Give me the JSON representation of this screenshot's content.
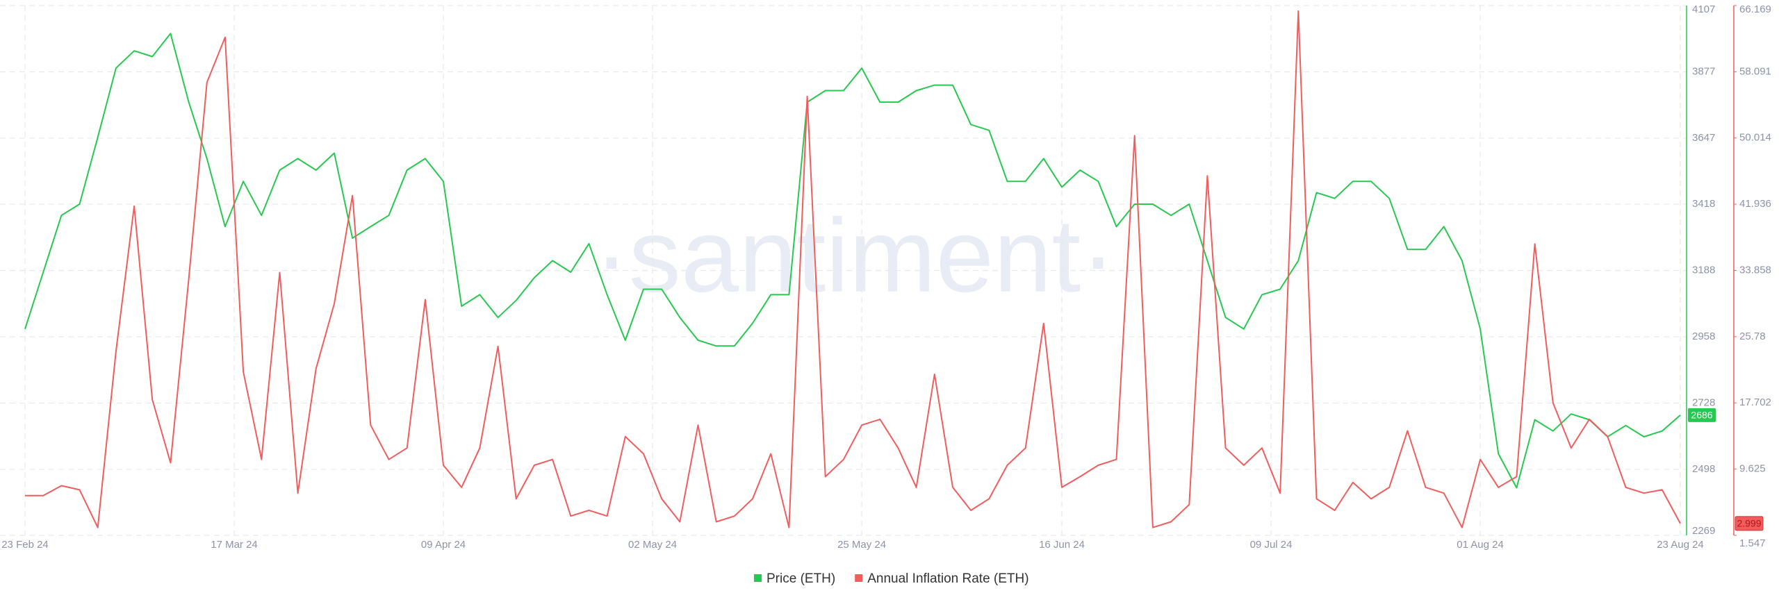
{
  "chart_data": {
    "type": "line",
    "watermark": "·santiment·",
    "x": [
      "23 Feb 24",
      "25 Feb 24",
      "27 Feb 24",
      "29 Feb 24",
      "02 Mar 24",
      "04 Mar 24",
      "06 Mar 24",
      "08 Mar 24",
      "10 Mar 24",
      "12 Mar 24",
      "14 Mar 24",
      "16 Mar 24",
      "18 Mar 24",
      "20 Mar 24",
      "22 Mar 24",
      "24 Mar 24",
      "26 Mar 24",
      "28 Mar 24",
      "30 Mar 24",
      "01 Apr 24",
      "03 Apr 24",
      "05 Apr 24",
      "07 Apr 24",
      "09 Apr 24",
      "11 Apr 24",
      "13 Apr 24",
      "15 Apr 24",
      "17 Apr 24",
      "19 Apr 24",
      "21 Apr 24",
      "23 Apr 24",
      "25 Apr 24",
      "27 Apr 24",
      "29 Apr 24",
      "01 May 24",
      "03 May 24",
      "05 May 24",
      "07 May 24",
      "09 May 24",
      "11 May 24",
      "13 May 24",
      "15 May 24",
      "17 May 24",
      "19 May 24",
      "21 May 24",
      "23 May 24",
      "25 May 24",
      "27 May 24",
      "29 May 24",
      "31 May 24",
      "02 Jun 24",
      "04 Jun 24",
      "06 Jun 24",
      "08 Jun 24",
      "10 Jun 24",
      "12 Jun 24",
      "14 Jun 24",
      "16 Jun 24",
      "18 Jun 24",
      "20 Jun 24",
      "22 Jun 24",
      "24 Jun 24",
      "26 Jun 24",
      "28 Jun 24",
      "30 Jun 24",
      "02 Jul 24",
      "04 Jul 24",
      "06 Jul 24",
      "08 Jul 24",
      "10 Jul 24",
      "12 Jul 24",
      "14 Jul 24",
      "16 Jul 24",
      "18 Jul 24",
      "20 Jul 24",
      "22 Jul 24",
      "24 Jul 24",
      "26 Jul 24",
      "28 Jul 24",
      "30 Jul 24",
      "01 Aug 24",
      "03 Aug 24",
      "05 Aug 24",
      "07 Aug 24",
      "09 Aug 24",
      "11 Aug 24",
      "13 Aug 24",
      "15 Aug 24",
      "17 Aug 24",
      "19 Aug 24",
      "21 Aug 24",
      "23 Aug 24"
    ],
    "xticks": [
      "23 Feb 24",
      "17 Mar 24",
      "09 Apr 24",
      "02 May 24",
      "25 May 24",
      "16 Jun 24",
      "09 Jul 24",
      "01 Aug 24",
      "23 Aug 24"
    ],
    "series": [
      {
        "name": "Price (ETH)",
        "color": "#26c94f",
        "axis": "y",
        "values": [
          2985,
          3182,
          3379,
          3418,
          3650,
          3890,
          3950,
          3930,
          4010,
          3772,
          3576,
          3340,
          3497,
          3379,
          3536,
          3576,
          3536,
          3595,
          3300,
          3340,
          3379,
          3536,
          3576,
          3497,
          3064,
          3104,
          3025,
          3084,
          3163,
          3222,
          3182,
          3281,
          3104,
          2946,
          3123,
          3123,
          3025,
          2946,
          2926,
          2926,
          3005,
          3104,
          3104,
          3772,
          3812,
          3812,
          3890,
          3772,
          3772,
          3812,
          3831,
          3831,
          3694,
          3674,
          3497,
          3497,
          3576,
          3477,
          3536,
          3497,
          3340,
          3418,
          3418,
          3379,
          3418,
          3222,
          3025,
          2985,
          3104,
          3123,
          3222,
          3458,
          3438,
          3497,
          3497,
          3438,
          3261,
          3261,
          3340,
          3222,
          2985,
          2552,
          2434,
          2670,
          2631,
          2690,
          2670,
          2611,
          2650,
          2611,
          2631,
          2686
        ]
      },
      {
        "name": "Annual Inflation Rate (ETH)",
        "color": "#f25c5c",
        "axis": "y2",
        "values": [
          6.4,
          6.4,
          7.6,
          7.1,
          2.5,
          24,
          41.7,
          18.1,
          10.4,
          32.8,
          56.8,
          62.3,
          21.5,
          10.8,
          33.6,
          6.7,
          21.9,
          29.8,
          43.0,
          15.0,
          10.8,
          12.2,
          30.3,
          10.1,
          7.4,
          12.2,
          24.6,
          6.0,
          10.1,
          10.8,
          3.9,
          4.6,
          3.9,
          13.6,
          11.5,
          6.0,
          3.2,
          15.0,
          3.2,
          3.9,
          6.0,
          11.5,
          2.5,
          55.1,
          8.7,
          10.8,
          15.0,
          15.7,
          12.2,
          7.4,
          21.2,
          7.4,
          4.6,
          6.0,
          10.1,
          12.2,
          27.4,
          7.4,
          8.7,
          10.1,
          10.8,
          50.3,
          2.5,
          3.2,
          5.3,
          45.4,
          12.2,
          10.1,
          12.2,
          6.7,
          65.5,
          6.0,
          4.6,
          8.0,
          6.0,
          7.4,
          14.3,
          7.4,
          6.7,
          2.5,
          10.8,
          7.4,
          8.7,
          37.1,
          17.7,
          12.2,
          15.7,
          13.6,
          7.4,
          6.7,
          7.1,
          2.999
        ]
      }
    ],
    "ylim": [
      2269,
      4107
    ],
    "yticks": [
      2269,
      2498,
      2728,
      2958,
      3188,
      3418,
      3647,
      3877,
      4107
    ],
    "y2lim": [
      1.547,
      66.169
    ],
    "y2ticks": [
      1.547,
      9.625,
      17.702,
      25.78,
      33.858,
      41.936,
      50.014,
      58.091,
      66.169
    ],
    "grid": true
  }
}
